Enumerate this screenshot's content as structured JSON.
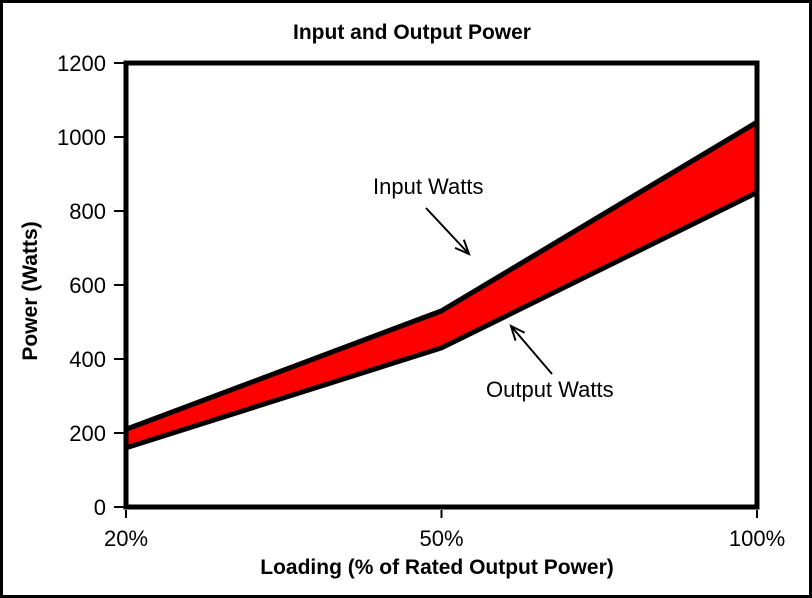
{
  "chart_data": {
    "type": "area",
    "title": "Input and Output Power",
    "xlabel": "Loading (% of Rated Output Power)",
    "ylabel": "Power (Watts)",
    "categories": [
      "20%",
      "50%",
      "100%"
    ],
    "series": [
      {
        "name": "Input Watts",
        "values": [
          210,
          530,
          1040
        ]
      },
      {
        "name": "Output Watts",
        "values": [
          160,
          430,
          850
        ]
      }
    ],
    "band_fill_between_series": true,
    "band_color": "#FF0000",
    "line_color": "#000000",
    "ylim": [
      0,
      1200
    ],
    "y_tick_step": 200,
    "y_ticks": [
      0,
      200,
      400,
      600,
      800,
      1000,
      1200
    ],
    "x_axis_type": "categorical-equal-spacing",
    "grid": false,
    "legend": false,
    "annotations": [
      {
        "text": "Input Watts",
        "points_to": "upper-line"
      },
      {
        "text": "Output Watts",
        "points_to": "lower-line"
      }
    ]
  }
}
